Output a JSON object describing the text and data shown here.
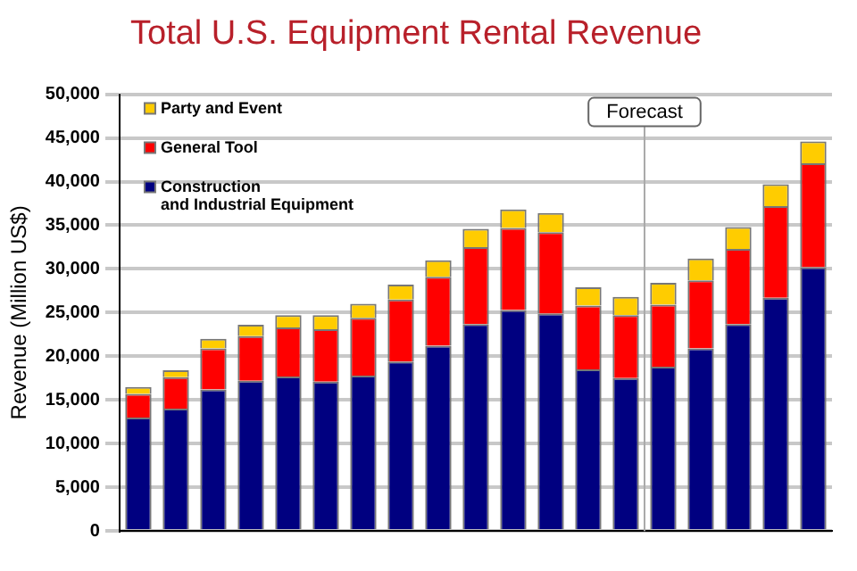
{
  "chart_data": {
    "type": "bar",
    "title": "Total U.S. Equipment Rental Revenue",
    "ylabel": "Revenue (Million US$)",
    "stacked": true,
    "categories": [
      null,
      null,
      null,
      null,
      null,
      null,
      null,
      null,
      null,
      null,
      null,
      null,
      null,
      null,
      null,
      null,
      null,
      null,
      null
    ],
    "series": [
      {
        "name": "Construction and Industrial Equipment",
        "color": "#000080",
        "values": [
          13000,
          14000,
          16200,
          17200,
          17700,
          17100,
          17800,
          19400,
          21200,
          23700,
          25300,
          24900,
          18500,
          17500,
          18800,
          20900,
          23700,
          26700,
          30200
        ]
      },
      {
        "name": "General Tool",
        "color": "#ff0000",
        "values": [
          2700,
          3600,
          4700,
          5100,
          5600,
          6000,
          6600,
          7100,
          7900,
          8800,
          9400,
          9300,
          7300,
          7200,
          7100,
          7800,
          8600,
          10500,
          11900
        ]
      },
      {
        "name": "Party and Event",
        "color": "#ffcc00",
        "values": [
          800,
          800,
          1100,
          1300,
          1400,
          1600,
          1600,
          1700,
          1900,
          2100,
          2100,
          2200,
          2100,
          2100,
          2500,
          2500,
          2500,
          2500,
          2500
        ]
      }
    ],
    "ylim": [
      0,
      50000
    ],
    "yticks": [
      0,
      {
        "value": 5000,
        "label": "5,000"
      },
      {
        "value": 10000,
        "label": "10,000"
      },
      {
        "value": 15000,
        "label": "15,000"
      },
      {
        "value": 20000,
        "label": "20,000"
      },
      {
        "value": 25000,
        "label": "25,000"
      },
      {
        "value": 30000,
        "label": "30,000"
      },
      {
        "value": 35000,
        "label": "35,000"
      },
      {
        "value": 40000,
        "label": "40,000"
      },
      {
        "value": 45000,
        "label": "45,000"
      },
      {
        "value": 50000,
        "label": "50,000"
      }
    ],
    "grid": "y",
    "legend": "top left",
    "annotations": [
      "Forecast"
    ]
  }
}
